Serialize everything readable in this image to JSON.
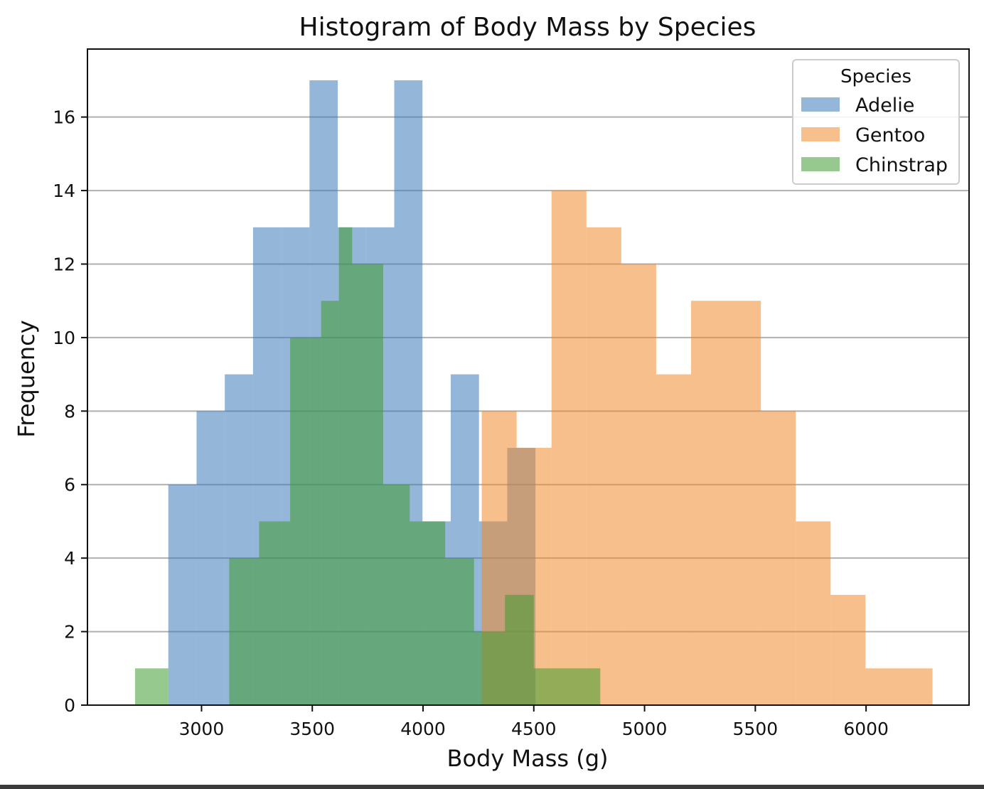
{
  "chart_data": {
    "type": "histogram",
    "title": "Histogram of Body Mass by Species",
    "xlabel": "Body Mass (g)",
    "ylabel": "Frequency",
    "xlim": [
      2485,
      6465
    ],
    "ylim": [
      0,
      17.85
    ],
    "x_ticks": [
      3000,
      3500,
      4000,
      4500,
      5000,
      5500,
      6000
    ],
    "y_ticks": [
      0,
      2,
      4,
      6,
      8,
      10,
      12,
      14,
      16
    ],
    "grid": "y",
    "legend": {
      "title": "Species",
      "placement": "top-right"
    },
    "bar_opacity": 0.55,
    "series": [
      {
        "name": "Adelie",
        "color": "#3d7ab9",
        "bin_edges": [
          2850,
          2977.5,
          3105,
          3232.5,
          3360,
          3487.5,
          3615,
          3742.5,
          3870,
          3997.5,
          4125,
          4252.5,
          4380,
          4507.5,
          4635,
          4762.5
        ],
        "counts": [
          6,
          8,
          9,
          13,
          13,
          17,
          13,
          13,
          17,
          5,
          9,
          5,
          7,
          0,
          0
        ]
      },
      {
        "name": "Gentoo",
        "color": "#ee8b2c",
        "bin_edges": [
          3950,
          4107.5,
          4265,
          4422.5,
          4580,
          4737.5,
          4895,
          5052.5,
          5210,
          5367.5,
          5525,
          5682.5,
          5840,
          5997.5,
          6155,
          6300
        ],
        "counts": [
          0,
          0,
          8,
          7,
          14,
          13,
          12,
          9,
          11,
          11,
          8,
          5,
          3,
          1,
          1
        ]
      },
      {
        "name": "Chinstrap",
        "color": "#3f9c2f",
        "bin_edges": [
          2700,
          2850,
          3000,
          3125,
          3260,
          3400,
          3540,
          3620,
          3680,
          3740,
          3820,
          3940,
          4100,
          4230,
          4370,
          4500,
          4640,
          4800
        ],
        "counts": [
          1,
          0,
          0,
          4,
          5,
          10,
          11,
          13,
          12,
          12,
          6,
          5,
          4,
          2,
          3,
          1,
          1
        ]
      }
    ]
  }
}
